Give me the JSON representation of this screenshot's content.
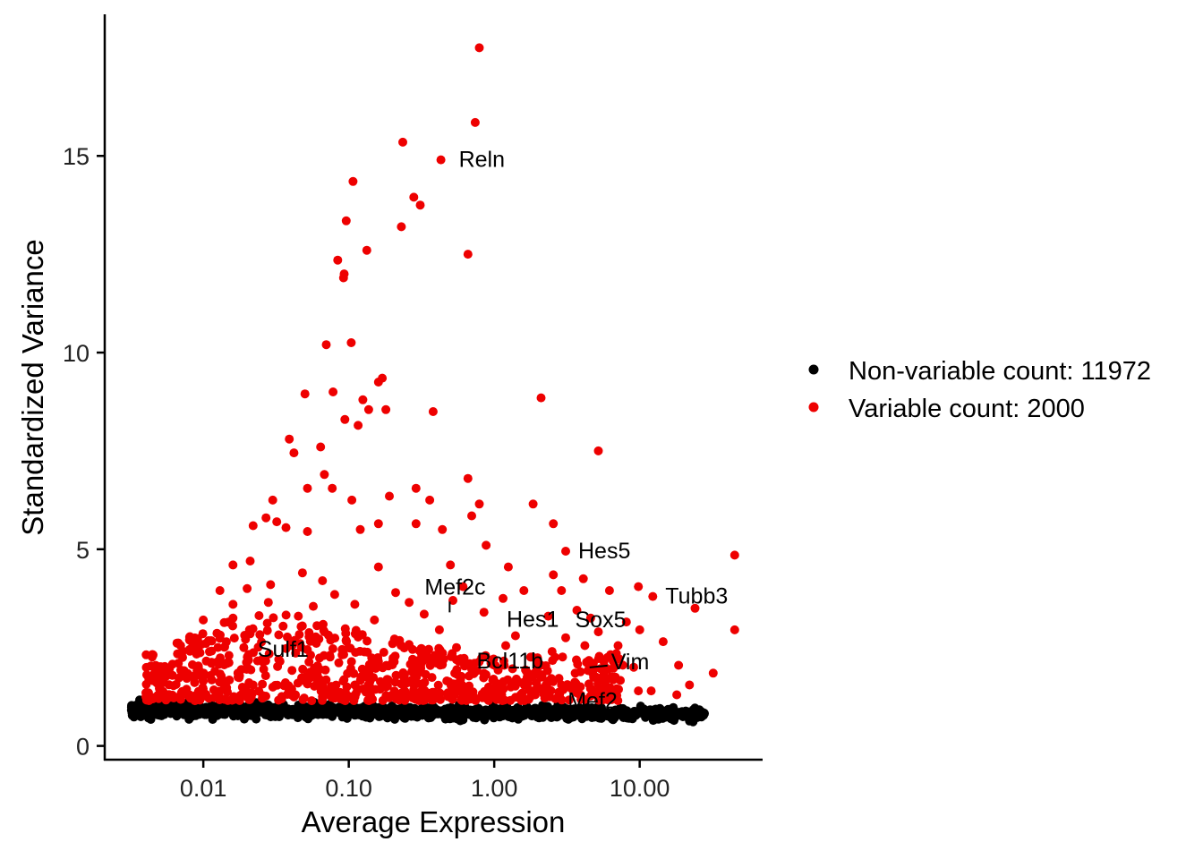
{
  "chart_data": {
    "type": "scatter",
    "title": "",
    "xlabel": "Average Expression",
    "ylabel": "Standardized Variance",
    "x_scale": "log10",
    "xlim": [
      0.0021,
      70
    ],
    "ylim": [
      -0.35,
      18.6
    ],
    "x_ticks": [
      {
        "value": 0.01,
        "label": "0.01"
      },
      {
        "value": 0.1,
        "label": "0.10"
      },
      {
        "value": 1,
        "label": "1.00"
      },
      {
        "value": 10,
        "label": "10.00"
      }
    ],
    "y_ticks": [
      {
        "value": 0,
        "label": "0"
      },
      {
        "value": 5,
        "label": "5"
      },
      {
        "value": 10,
        "label": "10"
      },
      {
        "value": 15,
        "label": "15"
      }
    ],
    "grid": false,
    "legend_position": "right",
    "series": [
      {
        "name": "Non-variable count: 11972",
        "color": "#000000",
        "count": 11972,
        "approx_x_range": [
          0.0032,
          28
        ],
        "approx_y_range": [
          0.55,
          1.3
        ]
      },
      {
        "name": "Variable count: 2000",
        "color": "#ee0000",
        "count": 2000,
        "points": [
          [
            0.79,
            17.75
          ],
          [
            0.74,
            15.85
          ],
          [
            0.235,
            15.35
          ],
          [
            0.43,
            14.9
          ],
          [
            0.107,
            14.35
          ],
          [
            0.28,
            13.95
          ],
          [
            0.31,
            13.75
          ],
          [
            0.096,
            13.35
          ],
          [
            0.23,
            13.2
          ],
          [
            0.133,
            12.6
          ],
          [
            0.66,
            12.5
          ],
          [
            0.084,
            12.35
          ],
          [
            0.093,
            12.0
          ],
          [
            0.092,
            11.9
          ],
          [
            0.104,
            10.25
          ],
          [
            0.07,
            10.2
          ],
          [
            0.17,
            9.35
          ],
          [
            0.16,
            9.25
          ],
          [
            0.05,
            8.95
          ],
          [
            0.078,
            9.0
          ],
          [
            0.125,
            8.8
          ],
          [
            2.1,
            8.85
          ],
          [
            0.137,
            8.55
          ],
          [
            0.18,
            8.55
          ],
          [
            0.38,
            8.5
          ],
          [
            0.094,
            8.3
          ],
          [
            0.116,
            8.15
          ],
          [
            0.039,
            7.8
          ],
          [
            0.064,
            7.6
          ],
          [
            0.042,
            7.45
          ],
          [
            5.2,
            7.5
          ],
          [
            0.068,
            6.9
          ],
          [
            0.66,
            6.8
          ],
          [
            0.052,
            6.55
          ],
          [
            0.077,
            6.55
          ],
          [
            0.29,
            6.55
          ],
          [
            0.19,
            6.35
          ],
          [
            0.03,
            6.25
          ],
          [
            0.105,
            6.25
          ],
          [
            0.36,
            6.25
          ],
          [
            0.79,
            6.15
          ],
          [
            1.85,
            6.15
          ],
          [
            0.027,
            5.8
          ],
          [
            0.7,
            5.85
          ],
          [
            0.032,
            5.7
          ],
          [
            0.16,
            5.65
          ],
          [
            0.29,
            5.65
          ],
          [
            2.55,
            5.65
          ],
          [
            0.022,
            5.6
          ],
          [
            0.037,
            5.55
          ],
          [
            0.052,
            5.45
          ],
          [
            0.12,
            5.5
          ],
          [
            0.44,
            5.5
          ],
          [
            0.88,
            5.1
          ],
          [
            3.1,
            4.95
          ],
          [
            0.016,
            4.6
          ],
          [
            0.021,
            4.7
          ],
          [
            0.048,
            4.4
          ],
          [
            0.066,
            4.2
          ],
          [
            0.16,
            4.55
          ],
          [
            0.5,
            4.6
          ],
          [
            1.25,
            4.55
          ],
          [
            2.55,
            4.35
          ],
          [
            4.1,
            4.25
          ],
          [
            0.013,
            3.95
          ],
          [
            0.02,
            4.0
          ],
          [
            0.029,
            4.1
          ],
          [
            0.08,
            3.85
          ],
          [
            0.21,
            3.9
          ],
          [
            0.61,
            4.05
          ],
          [
            1.6,
            3.95
          ],
          [
            2.9,
            3.95
          ],
          [
            6.2,
            3.95
          ],
          [
            9.8,
            4.05
          ],
          [
            12.3,
            3.8
          ],
          [
            45.0,
            4.85
          ],
          [
            0.016,
            3.6
          ],
          [
            0.028,
            3.65
          ],
          [
            0.057,
            3.55
          ],
          [
            0.11,
            3.6
          ],
          [
            0.26,
            3.65
          ],
          [
            0.52,
            3.7
          ],
          [
            1.15,
            3.75
          ],
          [
            3.7,
            3.45
          ],
          [
            24.0,
            3.5
          ],
          [
            0.016,
            3.25
          ],
          [
            0.045,
            3.3
          ],
          [
            0.15,
            3.2
          ],
          [
            0.33,
            3.35
          ],
          [
            0.85,
            3.4
          ],
          [
            2.35,
            3.3
          ],
          [
            4.6,
            3.25
          ],
          [
            5.2,
            2.9
          ],
          [
            8.1,
            3.15
          ],
          [
            10.0,
            2.95
          ],
          [
            0.01,
            3.2
          ],
          [
            0.021,
            2.85
          ],
          [
            0.068,
            2.9
          ],
          [
            0.42,
            2.95
          ],
          [
            1.4,
            2.8
          ],
          [
            3.1,
            2.75
          ],
          [
            7.1,
            2.55
          ],
          [
            14.5,
            2.65
          ],
          [
            45.0,
            2.95
          ],
          [
            0.0088,
            2.65
          ],
          [
            0.019,
            2.5
          ],
          [
            0.04,
            2.6
          ],
          [
            0.09,
            2.45
          ],
          [
            0.2,
            2.6
          ],
          [
            0.55,
            2.5
          ],
          [
            1.2,
            2.55
          ],
          [
            2.5,
            2.4
          ],
          [
            4.2,
            2.55
          ],
          [
            0.0072,
            2.25
          ],
          [
            0.015,
            2.3
          ],
          [
            0.033,
            2.2
          ],
          [
            0.074,
            2.3
          ],
          [
            0.16,
            2.15
          ],
          [
            0.38,
            2.2
          ],
          [
            0.95,
            2.1
          ],
          [
            2.1,
            2.05
          ],
          [
            4.8,
            2.1
          ],
          [
            9.1,
            2.0
          ],
          [
            18.5,
            2.05
          ],
          [
            0.0058,
            1.95
          ],
          [
            0.012,
            1.9
          ],
          [
            0.026,
            1.95
          ],
          [
            0.06,
            1.85
          ],
          [
            0.13,
            1.9
          ],
          [
            0.3,
            1.85
          ],
          [
            0.7,
            1.95
          ],
          [
            1.7,
            1.8
          ],
          [
            3.6,
            1.85
          ],
          [
            6.8,
            1.75
          ],
          [
            32.0,
            1.85
          ],
          [
            0.0048,
            1.6
          ],
          [
            0.01,
            1.65
          ],
          [
            0.022,
            1.55
          ],
          [
            0.05,
            1.65
          ],
          [
            0.11,
            1.55
          ],
          [
            0.25,
            1.6
          ],
          [
            0.6,
            1.55
          ],
          [
            1.3,
            1.5
          ],
          [
            2.9,
            1.55
          ],
          [
            5.9,
            1.45
          ],
          [
            12.0,
            1.4
          ],
          [
            22.0,
            1.55
          ],
          [
            0.0042,
            1.35
          ],
          [
            0.009,
            1.3
          ],
          [
            0.019,
            1.4
          ],
          [
            0.043,
            1.3
          ],
          [
            0.095,
            1.35
          ],
          [
            0.21,
            1.3
          ],
          [
            0.48,
            1.35
          ],
          [
            1.05,
            1.3
          ],
          [
            2.4,
            1.25
          ],
          [
            4.9,
            1.3
          ],
          [
            9.8,
            1.4
          ],
          [
            18.0,
            1.3
          ]
        ]
      }
    ],
    "annotations": [
      {
        "label": "Reln",
        "x": 0.43,
        "y": 14.9,
        "dx": 20,
        "dy": 8
      },
      {
        "label": "Hes5",
        "x": 3.1,
        "y": 4.95,
        "dx": 14,
        "dy": 8
      },
      {
        "label": "Tubb3",
        "x": 12.3,
        "y": 3.8,
        "dx": 14,
        "dy": 8
      },
      {
        "label": "Mef2c",
        "x": 0.48,
        "y": 3.35,
        "dx": -26,
        "dy": -22,
        "leader": true
      },
      {
        "label": "Hes1",
        "x": 1.15,
        "y": 3.3,
        "dx": 4,
        "dy": 12
      },
      {
        "label": "Sox5",
        "x": 5.2,
        "y": 3.2,
        "dx": -26,
        "dy": 8
      },
      {
        "label": "Sulf1",
        "x": 0.025,
        "y": 2.45,
        "dx": -4,
        "dy": 8
      },
      {
        "label": "Bcl11b",
        "x": 2.35,
        "y": 2.15,
        "dx": -80,
        "dy": 8
      },
      {
        "label": "Vim",
        "x": 4.4,
        "y": 1.95,
        "dx": 26,
        "dy": 0,
        "leader": true
      },
      {
        "label": "Mef2",
        "x": 3.2,
        "y": 1.1,
        "dx": 0,
        "dy": 6
      }
    ]
  }
}
